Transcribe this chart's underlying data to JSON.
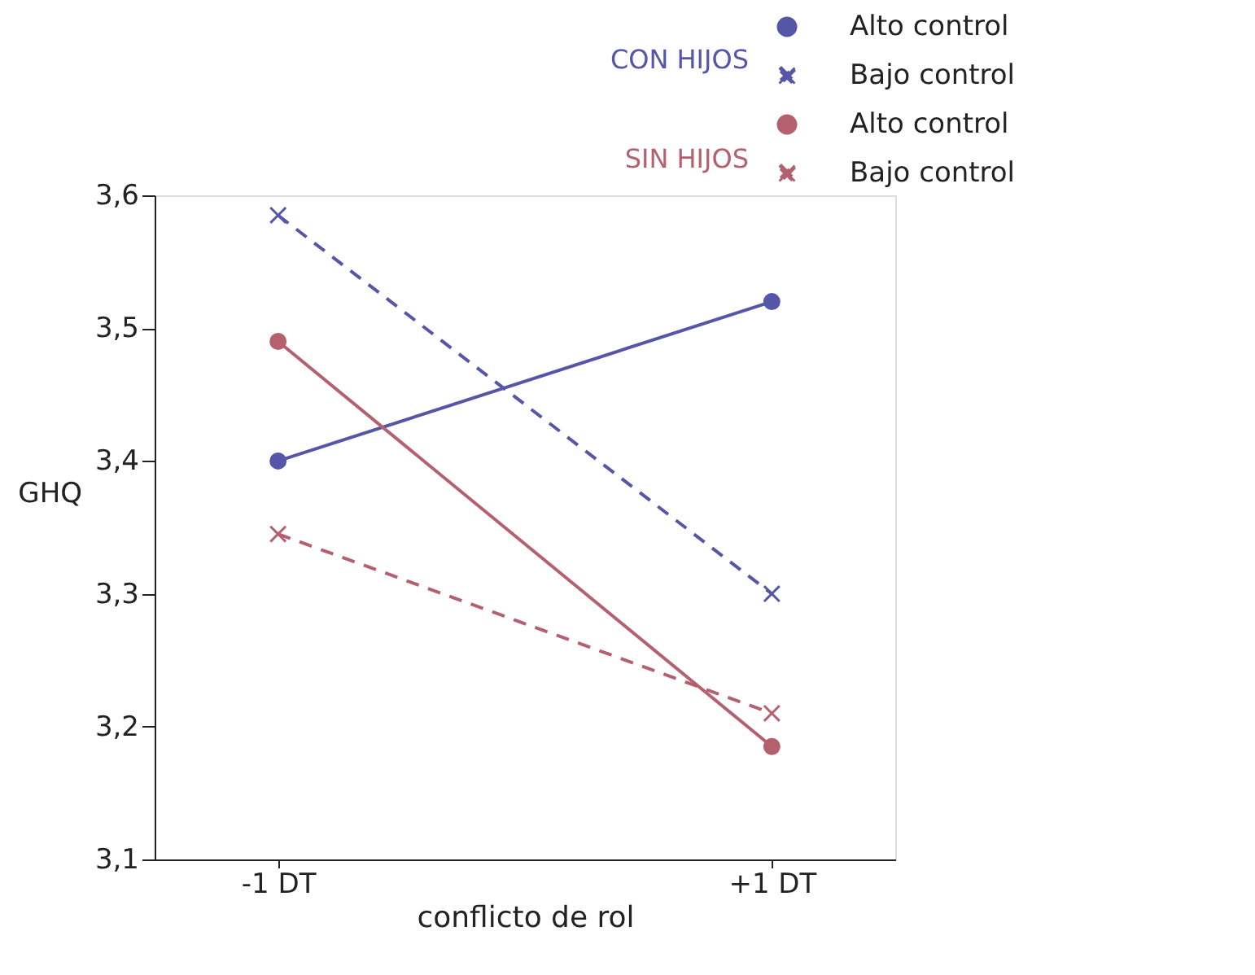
{
  "chart_data": {
    "type": "line",
    "xlabel": "conflicto de rol",
    "ylabel": "GHQ",
    "categories": [
      "-1 DT",
      "+1 DT"
    ],
    "series": [
      {
        "name": "Alto control",
        "color": "#5656a8",
        "values": [
          3.4,
          3.52
        ],
        "marker": "circle",
        "line_style": "solid"
      },
      {
        "name": "Bajo control",
        "color": "#5656a8",
        "values": [
          3.585,
          3.3
        ],
        "marker": "cross",
        "line_style": "dashed"
      },
      {
        "name": "Alto control",
        "color": "#b5606e",
        "values": [
          3.49,
          3.185
        ],
        "marker": "circle",
        "line_style": "solid"
      },
      {
        "name": "Bajo control",
        "color": "#b5606e",
        "values": [
          3.345,
          3.21
        ],
        "marker": "cross",
        "line_style": "dashed"
      }
    ],
    "annotations": [
      "CON HIJOS",
      "SIN HIJOS"
    ],
    "ylim": [
      3.1,
      3.6
    ],
    "yticks": [
      {
        "value": 3.1,
        "label": "3,1"
      },
      {
        "value": 3.2,
        "label": "3,2"
      },
      {
        "value": 3.3,
        "label": "3,3"
      },
      {
        "value": 3.4,
        "label": "3,4"
      },
      {
        "value": 3.5,
        "label": "3,5"
      },
      {
        "value": 3.6,
        "label": "3,6"
      }
    ],
    "grid": false,
    "legend": "top right"
  }
}
